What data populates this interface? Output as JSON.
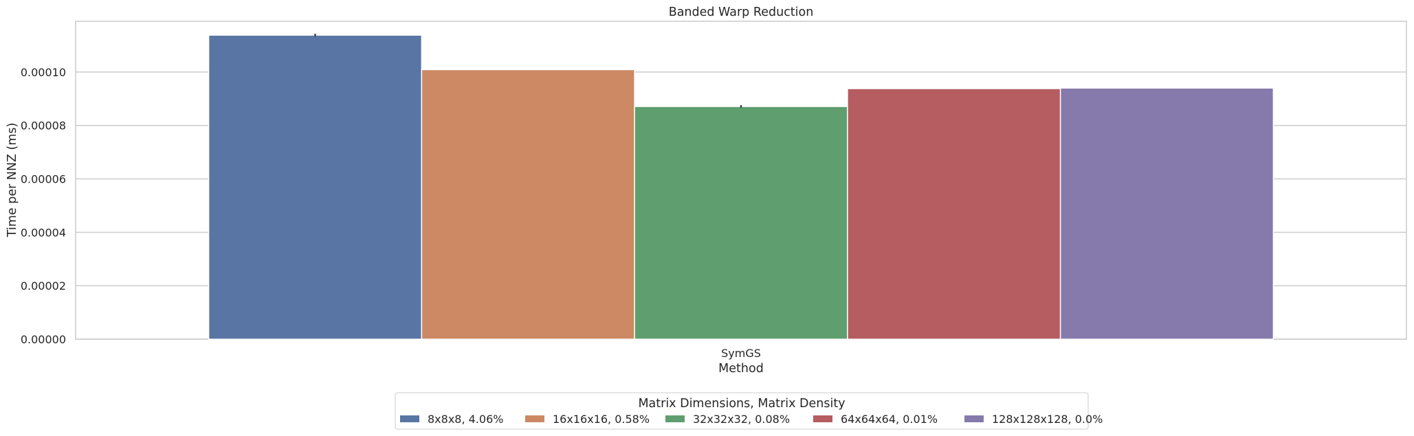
{
  "chart_data": {
    "type": "bar",
    "title": "Banded Warp Reduction",
    "xlabel": "Method",
    "ylabel": "Time per NNZ (ms)",
    "categories": [
      "SymGS"
    ],
    "ylim": [
      0,
      0.000119
    ],
    "yticks": [
      "0.00000",
      "0.00002",
      "0.00004",
      "0.00006",
      "0.00008",
      "0.00010"
    ],
    "ytick_values": [
      0,
      2e-05,
      4e-05,
      6e-05,
      8e-05,
      0.0001
    ],
    "grid": "y",
    "legend": {
      "title": "Matrix Dimensions, Matrix Density",
      "placement": "bottom-center"
    },
    "series": [
      {
        "name": "8x8x8, 4.06%",
        "values": [
          0.0001138
        ],
        "error": [
          5e-07
        ],
        "color": "#5975a4"
      },
      {
        "name": "16x16x16, 0.58%",
        "values": [
          0.0001009
        ],
        "error": [
          0
        ],
        "color": "#cc8963"
      },
      {
        "name": "32x32x32, 0.08%",
        "values": [
          8.71e-05
        ],
        "error": [
          5e-07
        ],
        "color": "#5f9e6e"
      },
      {
        "name": "64x64x64, 0.01%",
        "values": [
          9.38e-05
        ],
        "error": [
          0
        ],
        "color": "#b55d60"
      },
      {
        "name": "128x128x128, 0.0%",
        "values": [
          9.4e-05
        ],
        "error": [
          0
        ],
        "color": "#857aab"
      }
    ]
  }
}
